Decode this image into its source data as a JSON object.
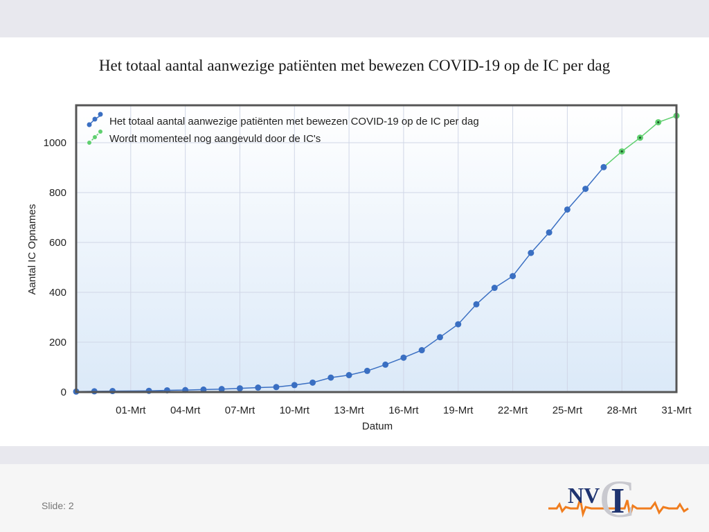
{
  "slide": {
    "title": "Het totaal aantal aanwezige patiënten met bewezen COVID-19 op de IC per dag",
    "slide_label": "Slide: 2"
  },
  "logo": {
    "text_n_v": "NV",
    "text_i": "I",
    "text_c": "C",
    "colors": {
      "n_v": "#1f3470",
      "c": "#c9c9cf",
      "pulse": "#f07d1e"
    }
  },
  "colors": {
    "series_confirmed": "#3a6fc2",
    "series_pending": "#5fcf6f",
    "plot_border": "#555555",
    "grid": "#d0d6e6"
  },
  "chart_data": {
    "type": "line",
    "title": "",
    "xlabel": "Datum",
    "ylabel": "Aantal IC Opnames",
    "xlim": [
      "2020-02-27",
      "2020-03-31"
    ],
    "ylim": [
      0,
      1150
    ],
    "grid": true,
    "legend_position": "top-left",
    "x_tick_labels": [
      "01-Mrt",
      "04-Mrt",
      "07-Mrt",
      "10-Mrt",
      "13-Mrt",
      "16-Mrt",
      "19-Mrt",
      "22-Mrt",
      "25-Mrt",
      "28-Mrt",
      "31-Mrt"
    ],
    "y_ticks": [
      0,
      200,
      400,
      600,
      800,
      1000
    ],
    "series": [
      {
        "name": "Het totaal aantal aanwezige patiënten met bewezen COVID-19 op de IC per dag",
        "color": "#3a6fc2",
        "x": [
          "2020-02-27",
          "2020-02-28",
          "2020-02-29",
          "2020-03-02",
          "2020-03-03",
          "2020-03-04",
          "2020-03-05",
          "2020-03-06",
          "2020-03-07",
          "2020-03-08",
          "2020-03-09",
          "2020-03-10",
          "2020-03-11",
          "2020-03-12",
          "2020-03-13",
          "2020-03-14",
          "2020-03-15",
          "2020-03-16",
          "2020-03-17",
          "2020-03-18",
          "2020-03-19",
          "2020-03-20",
          "2020-03-21",
          "2020-03-22",
          "2020-03-23",
          "2020-03-24",
          "2020-03-25",
          "2020-03-26",
          "2020-03-27"
        ],
        "y": [
          2,
          3,
          4,
          5,
          7,
          8,
          10,
          12,
          15,
          18,
          20,
          28,
          38,
          58,
          68,
          85,
          110,
          138,
          168,
          220,
          272,
          352,
          418,
          465,
          558,
          640,
          732,
          815,
          902
        ]
      },
      {
        "name": "Wordt momenteel nog aangevuld door de IC's",
        "color": "#5fcf6f",
        "x": [
          "2020-03-28",
          "2020-03-29",
          "2020-03-30",
          "2020-03-31"
        ],
        "y": [
          965,
          1020,
          1082,
          1108
        ]
      }
    ]
  }
}
